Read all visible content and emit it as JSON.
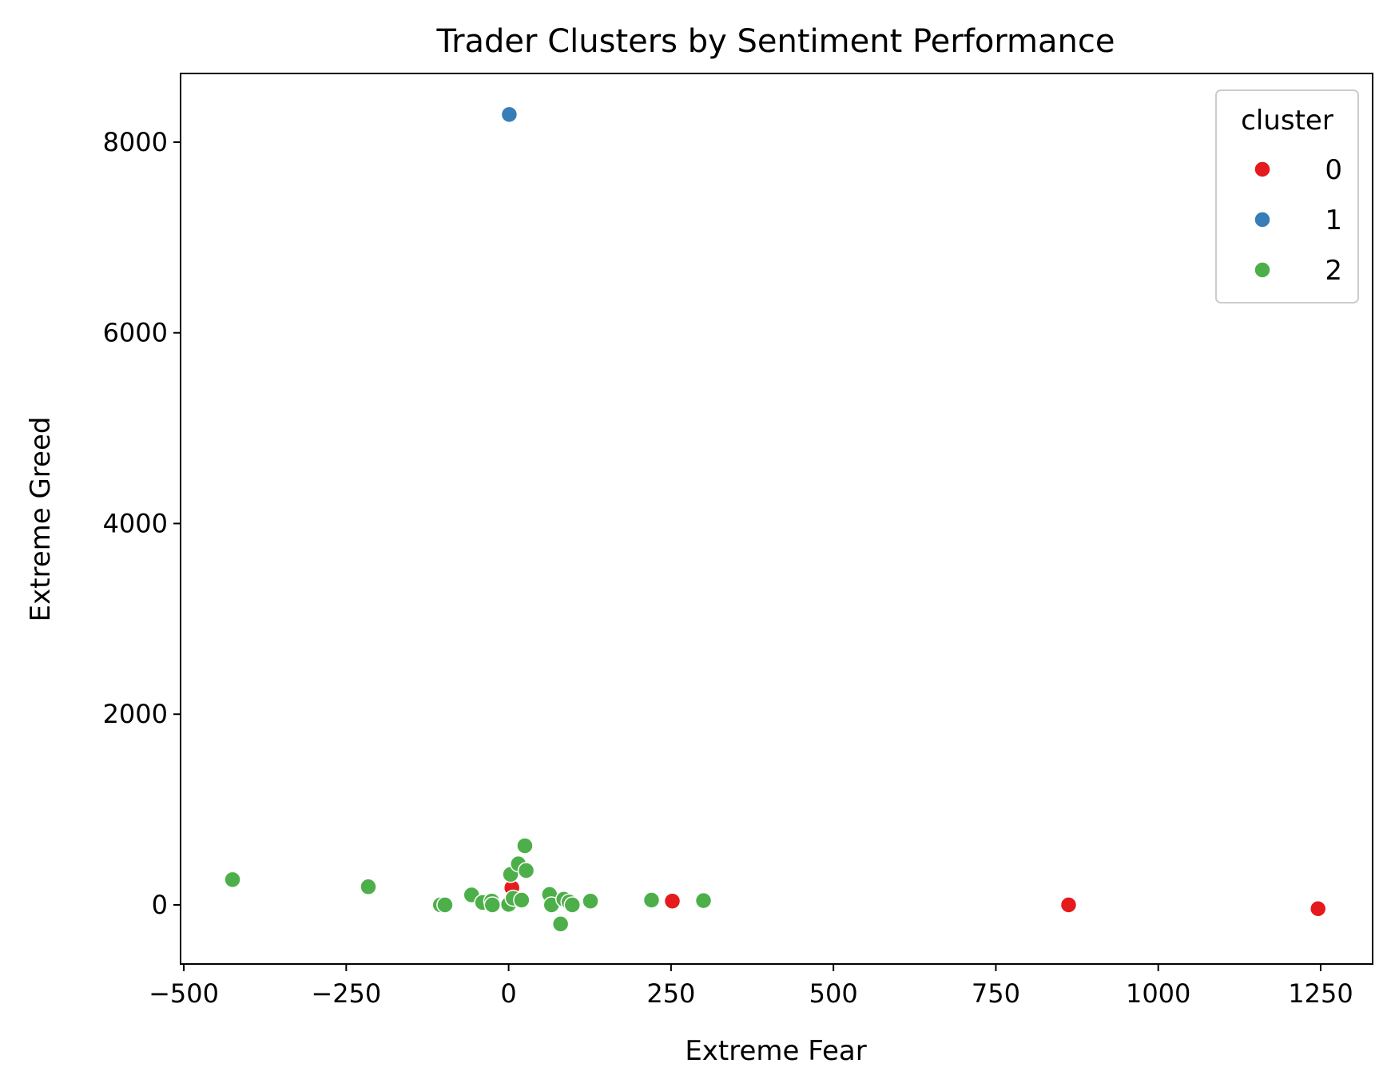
{
  "chart_data": {
    "type": "scatter",
    "title": "Trader Clusters by Sentiment Performance",
    "xlabel": "Extreme Fear",
    "ylabel": "Extreme Greed",
    "xlim": [
      -505,
      1330
    ],
    "ylim": [
      -620,
      8720
    ],
    "xticks": [
      -500,
      -250,
      0,
      250,
      500,
      750,
      1000,
      1250
    ],
    "xtick_labels": [
      "−500",
      "−250",
      "0",
      "250",
      "500",
      "750",
      "1000",
      "1250"
    ],
    "yticks": [
      0,
      2000,
      4000,
      6000,
      8000
    ],
    "ytick_labels": [
      "0",
      "2000",
      "4000",
      "6000",
      "8000"
    ],
    "grid": false,
    "legend": {
      "title": "cluster",
      "placement": "top-right"
    },
    "series": [
      {
        "name": "0",
        "color": "#e41a1c",
        "points": [
          {
            "x": 5,
            "y": 180
          },
          {
            "x": 252,
            "y": 40
          },
          {
            "x": 862,
            "y": 0
          },
          {
            "x": 1246,
            "y": -40
          }
        ]
      },
      {
        "name": "1",
        "color": "#377eb8",
        "points": [
          {
            "x": 1,
            "y": 8290
          }
        ]
      },
      {
        "name": "2",
        "color": "#4daf4a",
        "points": [
          {
            "x": -425,
            "y": 265
          },
          {
            "x": -216,
            "y": 190
          },
          {
            "x": -105,
            "y": 0
          },
          {
            "x": -98,
            "y": 0
          },
          {
            "x": -57,
            "y": 105
          },
          {
            "x": -40,
            "y": 25
          },
          {
            "x": -26,
            "y": 40
          },
          {
            "x": -25,
            "y": 0
          },
          {
            "x": 0,
            "y": 5
          },
          {
            "x": 3,
            "y": 320
          },
          {
            "x": 7,
            "y": 70
          },
          {
            "x": 15,
            "y": 430
          },
          {
            "x": 20,
            "y": 50
          },
          {
            "x": 25,
            "y": 620
          },
          {
            "x": 27,
            "y": 360
          },
          {
            "x": 63,
            "y": 110
          },
          {
            "x": 66,
            "y": 0
          },
          {
            "x": 80,
            "y": -200
          },
          {
            "x": 85,
            "y": 60
          },
          {
            "x": 93,
            "y": 30
          },
          {
            "x": 98,
            "y": 0
          },
          {
            "x": 126,
            "y": 40
          },
          {
            "x": 220,
            "y": 50
          },
          {
            "x": 300,
            "y": 45
          }
        ]
      }
    ]
  }
}
